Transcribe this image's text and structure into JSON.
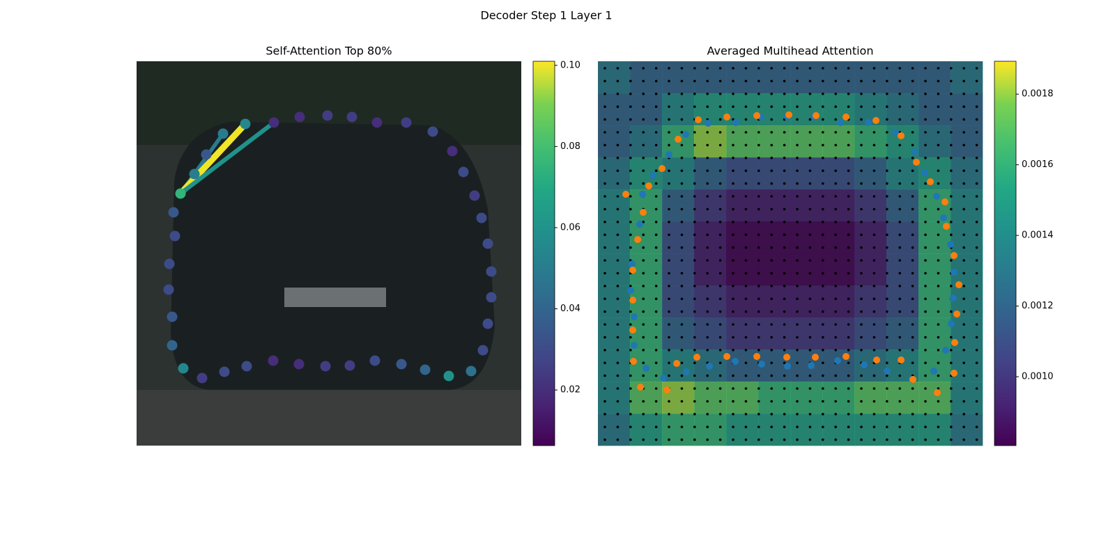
{
  "title": "Decoder Step 1 Layer 1",
  "chart_data": [
    {
      "type": "attention",
      "title": "Self-Attention Top 80%",
      "colormap": "viridis",
      "xlim": [
        0,
        552
      ],
      "ylim": [
        552,
        0
      ],
      "clim": [
        0.0063,
        0.101
      ],
      "cticks": [
        0.02,
        0.04,
        0.06,
        0.08,
        {
          "value": 0.1,
          "label": "0.10"
        }
      ],
      "query": {
        "x": 63,
        "y": 190,
        "value": 0.075
      },
      "points": {
        "x": [
          83,
          100,
          124,
          156,
          197,
          234,
          274,
          309,
          345,
          387,
          425,
          453,
          469,
          485,
          495,
          504,
          509,
          509,
          504,
          497,
          480,
          448,
          414,
          380,
          342,
          306,
          271,
          233,
          196,
          158,
          126,
          94,
          67,
          51,
          51,
          46,
          47,
          55,
          53
        ],
        "y": [
          162,
          134,
          104,
          90,
          88,
          80,
          78,
          80,
          88,
          88,
          101,
          129,
          159,
          193,
          225,
          262,
          302,
          339,
          377,
          415,
          445,
          452,
          443,
          435,
          430,
          437,
          438,
          435,
          430,
          438,
          446,
          455,
          441,
          408,
          367,
          328,
          291,
          251,
          217
        ],
        "values": [
          0.05,
          0.035,
          0.05,
          0.055,
          0.02,
          0.02,
          0.025,
          0.025,
          0.02,
          0.025,
          0.03,
          0.02,
          0.03,
          0.025,
          0.03,
          0.03,
          0.03,
          0.03,
          0.03,
          0.03,
          0.045,
          0.06,
          0.04,
          0.035,
          0.03,
          0.025,
          0.025,
          0.02,
          0.02,
          0.03,
          0.03,
          0.025,
          0.055,
          0.04,
          0.035,
          0.03,
          0.03,
          0.03,
          0.035
        ],
        "edge_values": [
          null,
          null,
          0.05,
          0.1,
          0.06,
          null,
          null,
          null,
          null,
          null,
          null,
          null,
          null,
          null,
          null,
          null,
          null,
          null,
          null,
          null,
          null,
          null,
          null,
          null,
          null,
          null,
          null,
          null,
          null,
          null,
          null,
          null,
          null,
          null,
          null,
          null,
          null,
          null,
          null
        ]
      }
    },
    {
      "type": "heatmap",
      "title": "Averaged Multihead Attention",
      "colormap": "viridis",
      "xlim": [
        0,
        552
      ],
      "ylim": [
        552,
        0
      ],
      "clim": [
        0.000805,
        0.001893
      ],
      "cticks": [
        {
          "value": 0.001,
          "label": "0.0010"
        },
        0.0012,
        0.0014,
        0.0016,
        0.0018
      ],
      "values": [
        [
          0.0013,
          0.0012,
          0.0012,
          0.0012,
          0.0012,
          0.0012,
          0.0012,
          0.0012,
          0.0012,
          0.0012,
          0.0012,
          0.0013
        ],
        [
          0.0012,
          0.0012,
          0.0014,
          0.0015,
          0.0015,
          0.0015,
          0.0015,
          0.0015,
          0.0014,
          0.0013,
          0.0012,
          0.0012
        ],
        [
          0.0012,
          0.0013,
          0.0016,
          0.0018,
          0.0017,
          0.0017,
          0.0017,
          0.0017,
          0.0016,
          0.0015,
          0.0013,
          0.0012
        ],
        [
          0.0013,
          0.0015,
          0.0014,
          0.0012,
          0.0011,
          0.0011,
          0.0011,
          0.0011,
          0.0012,
          0.0014,
          0.0015,
          0.0013
        ],
        [
          0.0014,
          0.0016,
          0.0012,
          0.001,
          0.0009,
          0.0009,
          0.0009,
          0.0009,
          0.001,
          0.0012,
          0.0016,
          0.0014
        ],
        [
          0.0014,
          0.0016,
          0.0011,
          0.0009,
          0.0008,
          0.0008,
          0.0008,
          0.0008,
          0.0009,
          0.0011,
          0.0016,
          0.0014
        ],
        [
          0.0014,
          0.0016,
          0.0011,
          0.0009,
          0.0008,
          0.0008,
          0.0008,
          0.0008,
          0.0009,
          0.0011,
          0.0016,
          0.0014
        ],
        [
          0.0014,
          0.0016,
          0.0011,
          0.001,
          0.0009,
          0.0009,
          0.0009,
          0.0009,
          0.001,
          0.0011,
          0.0016,
          0.0014
        ],
        [
          0.0014,
          0.0016,
          0.0012,
          0.0011,
          0.001,
          0.001,
          0.001,
          0.001,
          0.0011,
          0.0012,
          0.0016,
          0.0014
        ],
        [
          0.0014,
          0.0016,
          0.0014,
          0.0013,
          0.0012,
          0.0012,
          0.0012,
          0.0012,
          0.0013,
          0.0014,
          0.0016,
          0.0014
        ],
        [
          0.0014,
          0.0017,
          0.0018,
          0.0017,
          0.0017,
          0.0016,
          0.0016,
          0.0016,
          0.0017,
          0.0017,
          0.0017,
          0.0014
        ],
        [
          0.0013,
          0.0015,
          0.0016,
          0.0016,
          0.0015,
          0.0015,
          0.0015,
          0.0015,
          0.0015,
          0.0015,
          0.0015,
          0.0013
        ]
      ],
      "series": [
        {
          "color": "#1f77b4",
          "x": [
            64,
            60,
            49,
            47,
            52,
            52,
            69,
            94,
            127,
            160,
            197,
            235,
            272,
            306,
            344,
            382,
            415,
            451,
            482,
            499,
            507,
            510,
            511,
            506,
            496,
            486,
            469,
            455,
            427,
            388,
            348,
            310,
            272,
            234,
            198,
            158,
            126,
            102,
            79
          ],
          "y": [
            191,
            234,
            291,
            329,
            367,
            408,
            441,
            455,
            446,
            438,
            431,
            435,
            438,
            437,
            430,
            436,
            445,
            457,
            445,
            415,
            377,
            340,
            303,
            263,
            225,
            194,
            160,
            130,
            102,
            88,
            88,
            80,
            80,
            80,
            88,
            89,
            105,
            134,
            164
          ]
        },
        {
          "color": "#ff7f0e",
          "x": [
            40,
            65,
            57,
            50,
            50,
            50,
            51,
            61,
            99,
            113,
            142,
            185,
            228,
            271,
            312,
            356,
            400,
            435,
            452,
            487,
            511,
            512,
            515,
            518,
            511,
            500,
            498,
            477,
            457,
            435,
            399,
            356,
            313,
            274,
            228,
            185,
            144,
            115,
            92,
            73
          ],
          "y": [
            191,
            217,
            256,
            300,
            343,
            386,
            431,
            468,
            472,
            434,
            425,
            424,
            424,
            425,
            425,
            424,
            429,
            429,
            457,
            476,
            448,
            404,
            363,
            321,
            279,
            237,
            202,
            173,
            145,
            107,
            85,
            80,
            78,
            77,
            78,
            80,
            84,
            112,
            154,
            179
          ]
        }
      ]
    }
  ]
}
